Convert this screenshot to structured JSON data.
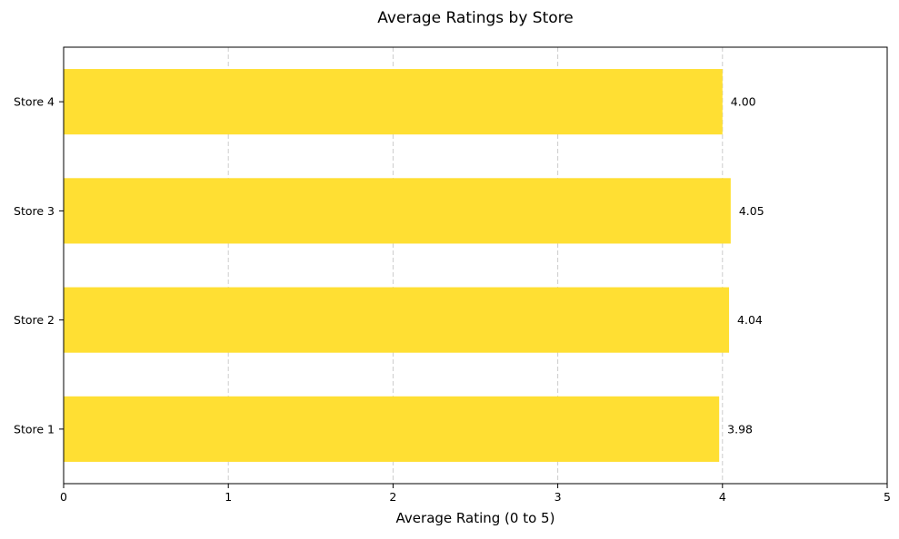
{
  "chart_data": {
    "type": "bar",
    "orientation": "horizontal",
    "title": "Average Ratings by Store",
    "xlabel": "Average Rating (0 to 5)",
    "ylabel": "",
    "categories": [
      "Store 1",
      "Store 2",
      "Store 3",
      "Store 4"
    ],
    "values": [
      3.98,
      4.04,
      4.05,
      4.0
    ],
    "data_labels": [
      "3.98",
      "4.04",
      "4.05",
      "4.00"
    ],
    "xlim": [
      0,
      5
    ],
    "xticks": [
      0,
      1,
      2,
      3,
      4,
      5
    ],
    "xtick_labels": [
      "0",
      "1",
      "2",
      "3",
      "4",
      "5"
    ],
    "grid": {
      "x": true,
      "y": false,
      "style": "dashed"
    },
    "bar_color": "#FFDF33",
    "grid_color": "#CCCCCC",
    "axis_color": "#000000"
  }
}
